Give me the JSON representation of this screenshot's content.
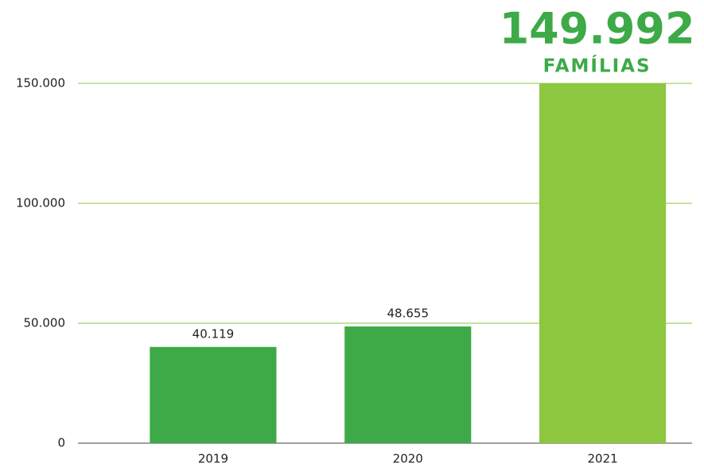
{
  "chart_data": {
    "type": "bar",
    "categories": [
      "2019",
      "2020",
      "2021"
    ],
    "values": [
      40119,
      48655,
      149992
    ],
    "value_labels": [
      "40.119",
      "48.655",
      "149.992"
    ],
    "colors": [
      "#3daa47",
      "#3daa47",
      "#8dc63f"
    ],
    "annotation": "FAMÍLIAS",
    "ylim": [
      0,
      150000
    ],
    "yticks": [
      0,
      {
        "value": 50000,
        "label": "50.000"
      },
      {
        "value": 100000,
        "label": "100.000"
      },
      {
        "value": 150000,
        "label": "150.000"
      }
    ],
    "grid": true,
    "grid_color": "#8dc63f"
  }
}
